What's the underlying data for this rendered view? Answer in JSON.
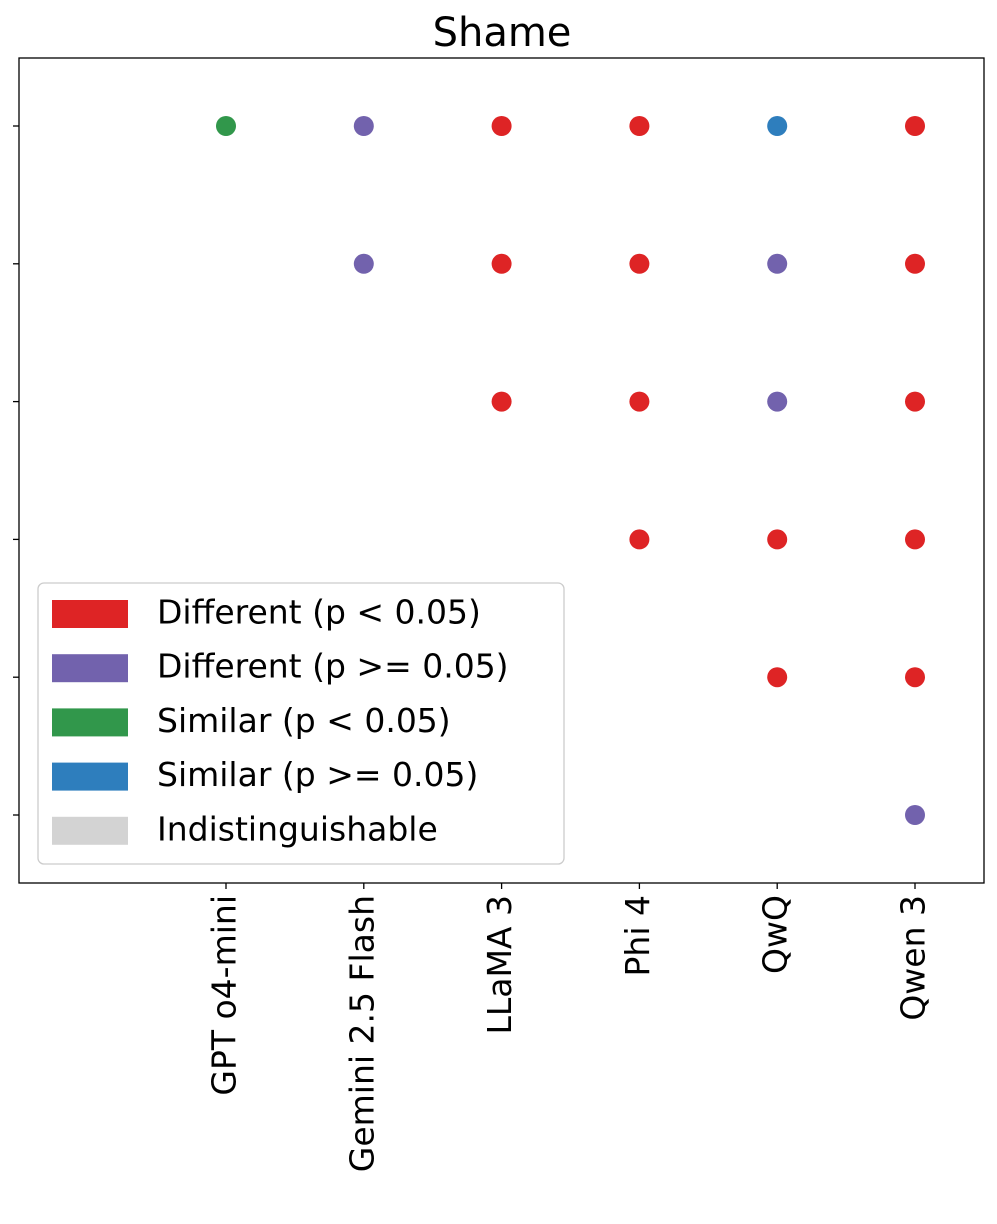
{
  "chart_data": {
    "type": "scatter",
    "title": "Shame",
    "xlabel": "",
    "ylabel": "",
    "x_categories": [
      "GPT o4-mini",
      "Gemini 2.5 Flash",
      "LLaMA 3",
      "Phi 4",
      "QwQ",
      "Qwen 3"
    ],
    "y_rows": 6,
    "y_tick_labels": [
      "",
      "",
      "",
      "",
      "",
      ""
    ],
    "grid": false,
    "legend_position": "lower-left",
    "legend": [
      {
        "key": "diff_sig",
        "label": "Different (p < 0.05)",
        "color": "#de2425"
      },
      {
        "key": "diff_nonsig",
        "label": "Different (p >= 0.05)",
        "color": "#7262ad"
      },
      {
        "key": "sim_sig",
        "label": "Similar (p < 0.05)",
        "color": "#31974b"
      },
      {
        "key": "sim_nonsig",
        "label": "Similar (p >= 0.05)",
        "color": "#2e7ebd"
      },
      {
        "key": "indist",
        "label": "Indistinguishable",
        "color": "#d3d3d3"
      }
    ],
    "points": [
      {
        "x": "GPT o4-mini",
        "row": 1,
        "status": "sim_sig"
      },
      {
        "x": "Gemini 2.5 Flash",
        "row": 1,
        "status": "diff_nonsig"
      },
      {
        "x": "LLaMA 3",
        "row": 1,
        "status": "diff_sig"
      },
      {
        "x": "Phi 4",
        "row": 1,
        "status": "diff_sig"
      },
      {
        "x": "QwQ",
        "row": 1,
        "status": "sim_nonsig"
      },
      {
        "x": "Qwen 3",
        "row": 1,
        "status": "diff_sig"
      },
      {
        "x": "Gemini 2.5 Flash",
        "row": 2,
        "status": "diff_nonsig"
      },
      {
        "x": "LLaMA 3",
        "row": 2,
        "status": "diff_sig"
      },
      {
        "x": "Phi 4",
        "row": 2,
        "status": "diff_sig"
      },
      {
        "x": "QwQ",
        "row": 2,
        "status": "diff_nonsig"
      },
      {
        "x": "Qwen 3",
        "row": 2,
        "status": "diff_sig"
      },
      {
        "x": "LLaMA 3",
        "row": 3,
        "status": "diff_sig"
      },
      {
        "x": "Phi 4",
        "row": 3,
        "status": "diff_sig"
      },
      {
        "x": "QwQ",
        "row": 3,
        "status": "diff_nonsig"
      },
      {
        "x": "Qwen 3",
        "row": 3,
        "status": "diff_sig"
      },
      {
        "x": "Phi 4",
        "row": 4,
        "status": "diff_sig"
      },
      {
        "x": "QwQ",
        "row": 4,
        "status": "diff_sig"
      },
      {
        "x": "Qwen 3",
        "row": 4,
        "status": "diff_sig"
      },
      {
        "x": "QwQ",
        "row": 5,
        "status": "diff_sig"
      },
      {
        "x": "Qwen 3",
        "row": 5,
        "status": "diff_sig"
      },
      {
        "x": "Qwen 3",
        "row": 6,
        "status": "diff_nonsig"
      }
    ]
  }
}
